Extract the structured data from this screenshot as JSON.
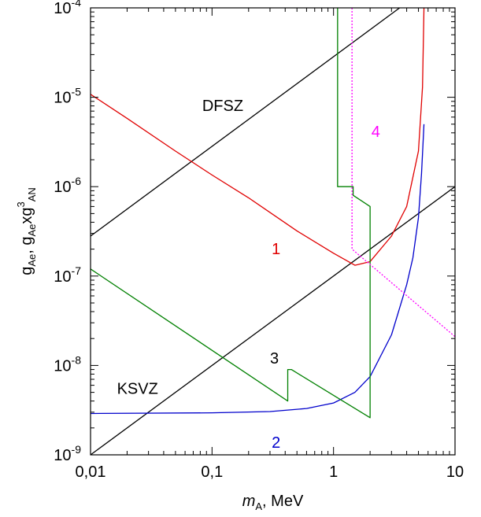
{
  "chart_data": {
    "type": "line",
    "xscale": "log",
    "yscale": "log",
    "xlim": [
      0.01,
      10
    ],
    "ylim": [
      1e-09,
      0.0001
    ],
    "grid": false,
    "xlabel": {
      "main": "m",
      "sub": "A",
      "rest": ", MeV"
    },
    "ylabel": {
      "parts": [
        {
          "t": "g"
        },
        {
          "t": "Ae",
          "s": "sub"
        },
        {
          "t": ", g"
        },
        {
          "t": "Ae",
          "s": "sub"
        },
        {
          "t": "xg"
        },
        {
          "t": "3",
          "s": "sup"
        },
        {
          "t": "AN",
          "s": "sub"
        }
      ]
    },
    "x_ticks": [
      {
        "value": 0.01,
        "label": "0,01"
      },
      {
        "value": 0.1,
        "label": "0,1"
      },
      {
        "value": 1,
        "label": "1"
      },
      {
        "value": 10,
        "label": "10"
      }
    ],
    "y_ticks": [
      {
        "value": 1e-09,
        "base": "10",
        "exp": "-9"
      },
      {
        "value": 1e-08,
        "base": "10",
        "exp": "-8"
      },
      {
        "value": 1e-07,
        "base": "10",
        "exp": "-7"
      },
      {
        "value": 1e-06,
        "base": "10",
        "exp": "-6"
      },
      {
        "value": 1e-05,
        "base": "10",
        "exp": "-5"
      },
      {
        "value": 0.0001,
        "base": "10",
        "exp": "-4"
      }
    ],
    "series": [
      {
        "name": "DFSZ",
        "color": "#000000",
        "style": "solid",
        "x": [
          0.01,
          3.5
        ],
        "y": [
          2.8e-07,
          0.0001
        ]
      },
      {
        "name": "KSVZ",
        "color": "#000000",
        "style": "solid",
        "x": [
          0.01,
          10
        ],
        "y": [
          1e-09,
          1e-06
        ]
      },
      {
        "name": "1",
        "color": "#e00000",
        "style": "solid",
        "x": [
          0.01,
          0.02,
          0.05,
          0.1,
          0.2,
          0.5,
          1.0,
          1.5,
          2.0,
          3.0,
          4.0,
          5.0,
          5.4,
          5.5,
          5.55
        ],
        "y": [
          1.08e-05,
          5.8e-06,
          2.5e-06,
          1.35e-06,
          7.5e-07,
          3.2e-07,
          1.8e-07,
          1.32e-07,
          1.45e-07,
          2.8e-07,
          6e-07,
          2.5e-06,
          1.3e-05,
          5e-05,
          0.0001
        ]
      },
      {
        "name": "2",
        "color": "#0000cc",
        "style": "solid",
        "x": [
          0.01,
          0.1,
          0.3,
          0.6,
          1.0,
          1.5,
          2.0,
          3.0,
          4.0,
          4.5,
          5.0,
          5.3,
          5.45,
          5.55
        ],
        "y": [
          2.9e-09,
          2.95e-09,
          3.05e-09,
          3.3e-09,
          3.8e-09,
          5e-09,
          7.5e-09,
          2.2e-08,
          8e-08,
          1.6e-07,
          4.5e-07,
          1.4e-06,
          3e-06,
          5e-06
        ]
      },
      {
        "name": "3",
        "color": "#008000",
        "style": "solid",
        "x": [
          0.01,
          0.42,
          0.42,
          0.45,
          2.0,
          2.0,
          1.45,
          1.45,
          1.08,
          1.08
        ],
        "y": [
          1.2e-07,
          4e-09,
          9e-09,
          9e-09,
          2.6e-09,
          6e-07,
          8e-07,
          1e-06,
          1e-06,
          0.0001
        ]
      },
      {
        "name": "4",
        "color": "#ff00ff",
        "style": "dotted",
        "x": [
          1.42,
          1.42,
          10
        ],
        "y": [
          0.0001,
          2e-07,
          2.1e-08
        ]
      }
    ],
    "annotations": [
      {
        "text": "DFSZ",
        "x": 0.083,
        "y": 7e-06,
        "color": "#000000"
      },
      {
        "text": "KSVZ",
        "x": 0.0165,
        "y": 4.8e-09,
        "color": "#000000"
      },
      {
        "text": "1",
        "x": 0.31,
        "y": 1.75e-07,
        "color": "#e00000"
      },
      {
        "text": "2",
        "x": 0.31,
        "y": 1.2e-09,
        "color": "#0000cc"
      },
      {
        "text": "3",
        "x": 0.3,
        "y": 1.05e-08,
        "color": "#000000"
      },
      {
        "text": "4",
        "x": 2.05,
        "y": 3.6e-06,
        "color": "#ff00ff"
      }
    ]
  }
}
